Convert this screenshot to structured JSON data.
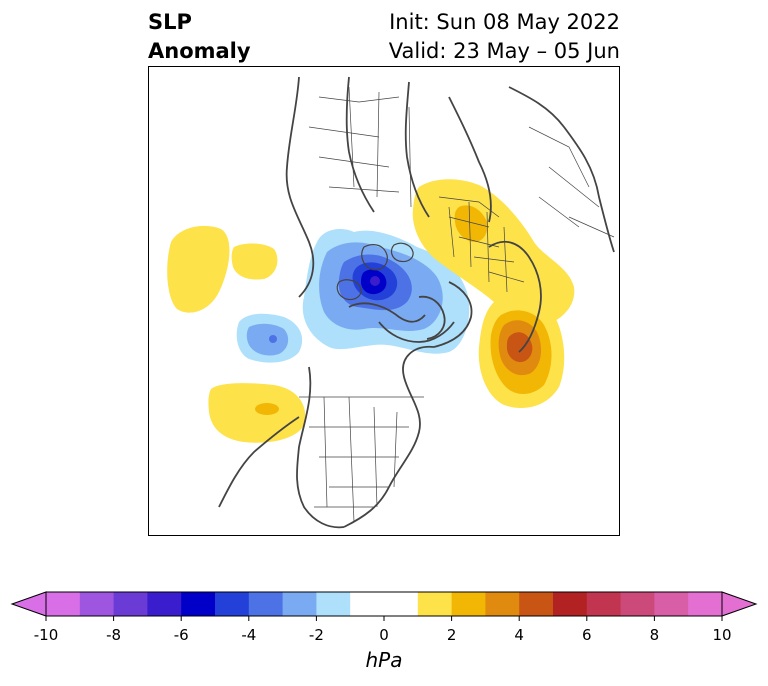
{
  "header": {
    "title_line1": "SLP",
    "title_line2": "Anomaly",
    "init_label": "Init: Sun 08 May 2022",
    "valid_label": "Valid: 23 May – 05 Jun"
  },
  "colorbar": {
    "unit_label": "hPa",
    "ticks": [
      "-10",
      "-8",
      "-6",
      "-4",
      "-2",
      "0",
      "2",
      "4",
      "6",
      "8",
      "10"
    ],
    "colors": [
      "#d96fe6",
      "#9e55e0",
      "#6b3bd6",
      "#3a1dcc",
      "#0000c8",
      "#2340d9",
      "#4d72e6",
      "#7aabf2",
      "#aee0fb",
      "#ffffff",
      "#ffffff",
      "#fde24a",
      "#f2b705",
      "#e08b10",
      "#c95515",
      "#b22222",
      "#c13550",
      "#cc4a7a",
      "#d85ea8",
      "#e46fd2"
    ],
    "extend": "both"
  },
  "colors": {
    "coastline": "#444444",
    "border": "#444444"
  }
}
